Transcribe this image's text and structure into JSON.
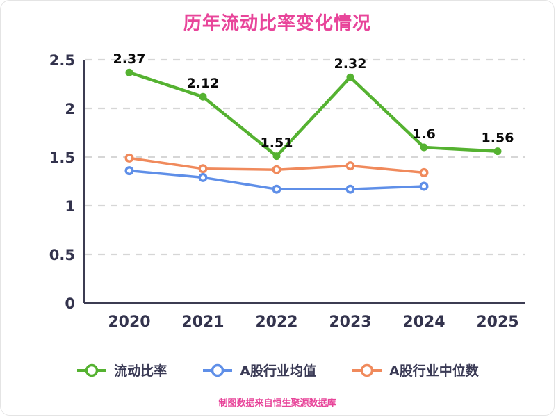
{
  "chart_data": {
    "type": "line",
    "title": "历年流动比率变化情况",
    "source_note": "制图数据来自恒生聚源数据库",
    "categories": [
      "2020",
      "2021",
      "2022",
      "2023",
      "2024",
      "2025"
    ],
    "series": [
      {
        "name": "流动比率",
        "color": "#55b231",
        "marker": "solid",
        "line_width": 4.5,
        "show_labels": true,
        "values": [
          2.37,
          2.12,
          1.51,
          2.32,
          1.6,
          1.56
        ],
        "labels": [
          "2.37",
          "2.12",
          "1.51",
          "2.32",
          "1.6",
          "1.56"
        ]
      },
      {
        "name": "A股行业均值",
        "color": "#5f8fe8",
        "marker": "ring",
        "line_width": 3.5,
        "show_labels": false,
        "values": [
          1.36,
          1.29,
          1.17,
          1.17,
          1.2,
          null
        ],
        "labels": []
      },
      {
        "name": "A股行业中位数",
        "color": "#f08a5c",
        "marker": "ring",
        "line_width": 3.5,
        "show_labels": false,
        "values": [
          1.49,
          1.38,
          1.37,
          1.41,
          1.34,
          null
        ],
        "labels": []
      }
    ],
    "xlabel": "",
    "ylabel": "",
    "ylim": [
      0,
      2.5
    ],
    "yticks": [
      0,
      0.5,
      1,
      1.5,
      2,
      2.5
    ],
    "ytick_labels": [
      "0",
      "0.5",
      "1",
      "1.5",
      "2",
      "2.5"
    ],
    "grid": "horizontal-dashed",
    "legend_position": "bottom"
  },
  "colors": {
    "title": "#e8459a",
    "footer": "#e8459a",
    "axis_line": "#3c3c52",
    "tick_label": "#33334d",
    "grid": "#d6d6d6",
    "data_label": "#0a0a0a",
    "legend_text": "#3a3a55",
    "background": "#ffffff"
  }
}
